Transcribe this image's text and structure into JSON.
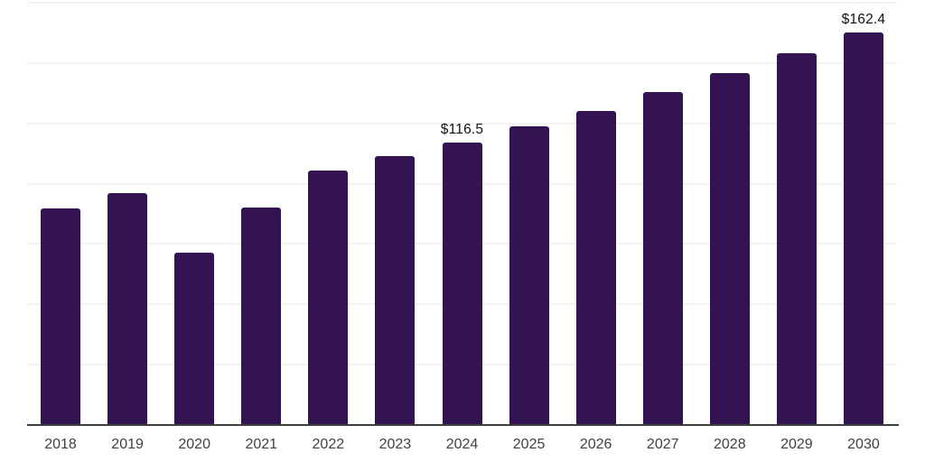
{
  "chart_data": {
    "type": "bar",
    "title": "",
    "xlabel": "",
    "ylabel": "",
    "categories": [
      "2018",
      "2019",
      "2020",
      "2021",
      "2022",
      "2023",
      "2024",
      "2025",
      "2026",
      "2027",
      "2028",
      "2029",
      "2030"
    ],
    "values": [
      89.3,
      95.9,
      71.0,
      89.9,
      105.2,
      111.0,
      116.5,
      123.3,
      129.9,
      137.7,
      145.4,
      153.6,
      162.4
    ],
    "annotations": [
      {
        "category": "2024",
        "text": "$116.5"
      },
      {
        "category": "2030",
        "text": "$162.4"
      }
    ],
    "ylim": [
      0,
      175
    ],
    "gridline_interval": 25,
    "grid": true,
    "legend": false,
    "y_tick_labels_visible": false,
    "colors": {
      "bar": "#341352",
      "gridline": "#f3f3f3",
      "axis_line": "#3d3d3d",
      "x_tick_label": "#404040",
      "data_label": "#111111",
      "background": "#ffffff"
    }
  }
}
